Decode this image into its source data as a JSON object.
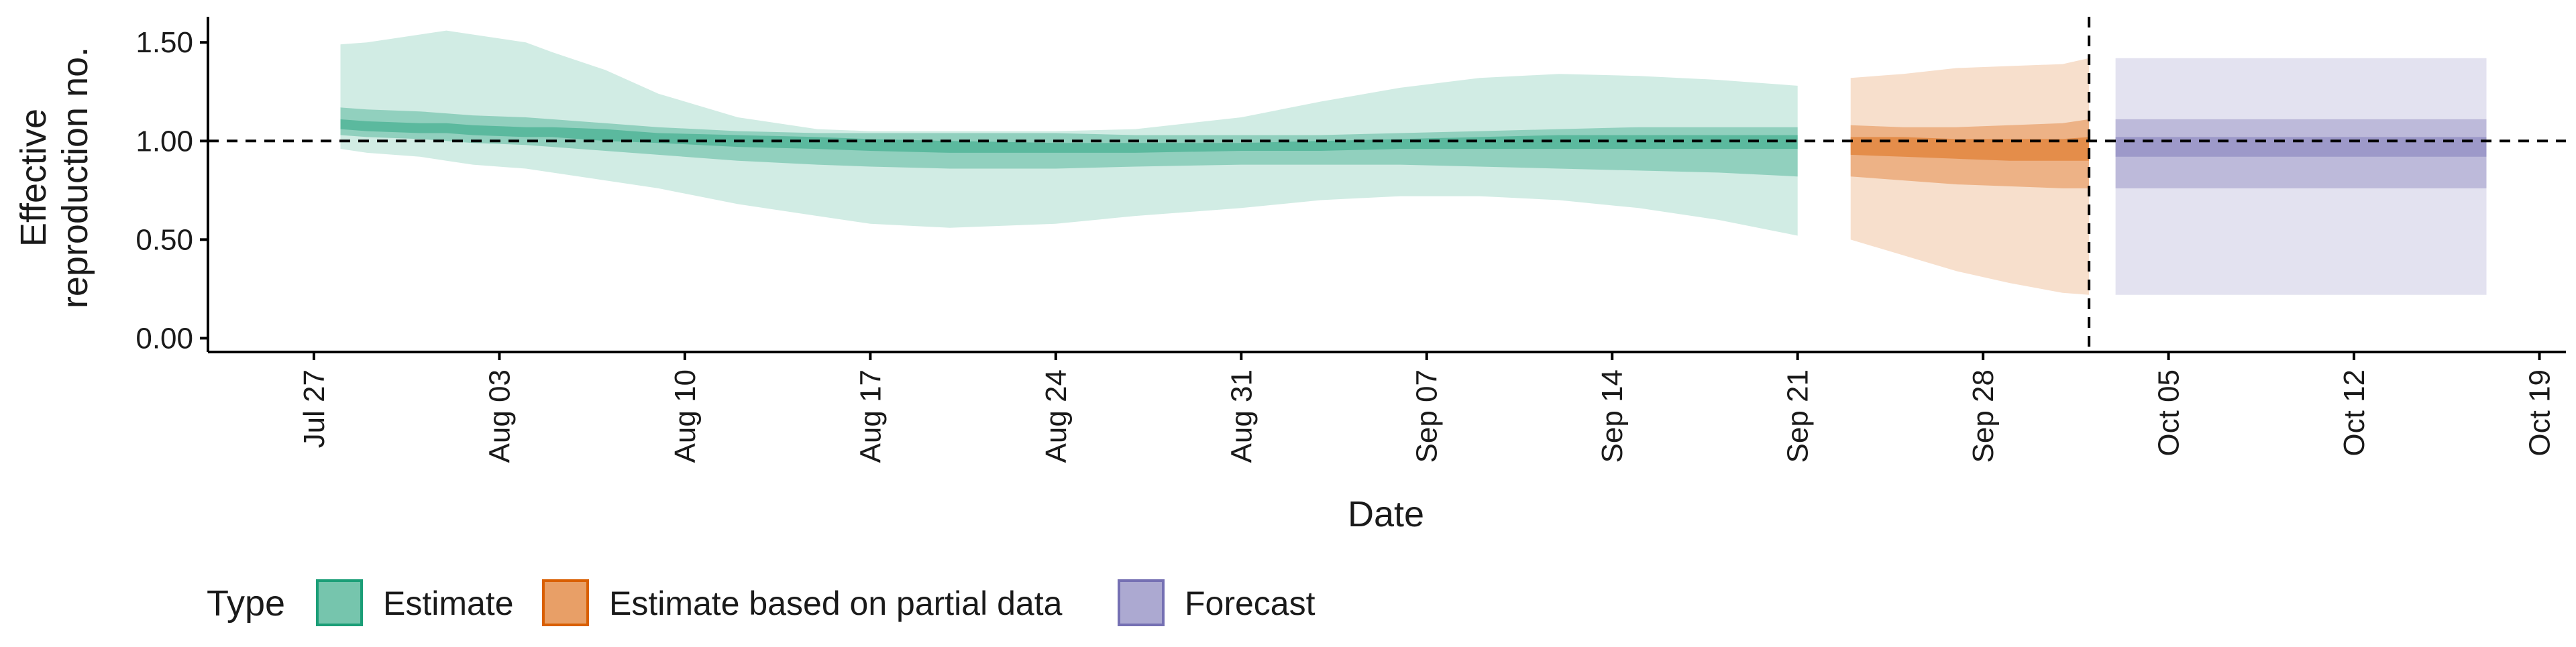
{
  "chart_data": {
    "type": "area",
    "title": "",
    "xlabel": "Date",
    "ylabel": "Effective reproduction no.",
    "ylabel_lines": [
      "Effective",
      "reproduction no."
    ],
    "ylim": [
      -0.07,
      1.63
    ],
    "xlim_dates": [
      "2020-07-23",
      "2020-10-20"
    ],
    "y_ticks": [
      0.0,
      0.5,
      1.0,
      1.5
    ],
    "y_tick_labels": [
      "0.00",
      "0.50",
      "1.00",
      "1.50"
    ],
    "x_ticks": [
      "2020-07-27",
      "2020-08-03",
      "2020-08-10",
      "2020-08-17",
      "2020-08-24",
      "2020-08-31",
      "2020-09-07",
      "2020-09-14",
      "2020-09-21",
      "2020-09-28",
      "2020-10-05",
      "2020-10-12",
      "2020-10-19"
    ],
    "x_tick_labels": [
      "Jul 27",
      "Aug 03",
      "Aug 10",
      "Aug 17",
      "Aug 24",
      "Aug 31",
      "Sep 07",
      "Sep 14",
      "Sep 21",
      "Sep 28",
      "Oct 05",
      "Oct 12",
      "Oct 19"
    ],
    "reference_line_y": 1.0,
    "forecast_date_line": "2020-10-02",
    "grid": false,
    "legend": {
      "title": "Type",
      "position": "bottom-left",
      "entries": [
        "Estimate",
        "Estimate based on partial data",
        "Forecast"
      ]
    },
    "colors": {
      "Estimate": "#1b9e77",
      "Estimate based on partial data": "#d95f02",
      "Forecast": "#7570b3"
    },
    "series": [
      {
        "name": "Estimate",
        "x": [
          "2020-07-28",
          "2020-07-29",
          "2020-07-31",
          "2020-08-01",
          "2020-08-02",
          "2020-08-04",
          "2020-08-05",
          "2020-08-07",
          "2020-08-09",
          "2020-08-12",
          "2020-08-15",
          "2020-08-17",
          "2020-08-20",
          "2020-08-24",
          "2020-08-27",
          "2020-08-31",
          "2020-09-03",
          "2020-09-06",
          "2020-09-09",
          "2020-09-12",
          "2020-09-15",
          "2020-09-18",
          "2020-09-21"
        ],
        "lower_90": [
          0.96,
          0.94,
          0.92,
          0.9,
          0.88,
          0.86,
          0.84,
          0.8,
          0.76,
          0.68,
          0.62,
          0.58,
          0.56,
          0.58,
          0.62,
          0.66,
          0.7,
          0.72,
          0.72,
          0.7,
          0.66,
          0.6,
          0.52
        ],
        "upper_90": [
          1.49,
          1.5,
          1.54,
          1.56,
          1.54,
          1.5,
          1.45,
          1.36,
          1.24,
          1.12,
          1.06,
          1.05,
          1.05,
          1.05,
          1.06,
          1.12,
          1.2,
          1.27,
          1.32,
          1.34,
          1.33,
          1.31,
          1.28
        ],
        "lower_50": [
          1.03,
          1.02,
          1.01,
          1.0,
          0.99,
          0.98,
          0.97,
          0.95,
          0.93,
          0.9,
          0.88,
          0.87,
          0.86,
          0.86,
          0.87,
          0.88,
          0.88,
          0.88,
          0.87,
          0.86,
          0.85,
          0.84,
          0.82
        ],
        "upper_50": [
          1.17,
          1.16,
          1.15,
          1.14,
          1.13,
          1.12,
          1.11,
          1.09,
          1.07,
          1.05,
          1.04,
          1.04,
          1.04,
          1.04,
          1.03,
          1.03,
          1.03,
          1.04,
          1.05,
          1.06,
          1.07,
          1.07,
          1.07
        ],
        "lower_20": [
          1.06,
          1.05,
          1.04,
          1.04,
          1.03,
          1.02,
          1.02,
          1.0,
          0.99,
          0.97,
          0.96,
          0.95,
          0.94,
          0.94,
          0.94,
          0.95,
          0.95,
          0.96,
          0.96,
          0.96,
          0.96,
          0.96,
          0.96
        ],
        "upper_20": [
          1.11,
          1.1,
          1.09,
          1.09,
          1.08,
          1.07,
          1.07,
          1.06,
          1.04,
          1.03,
          1.02,
          1.01,
          1.0,
          0.99,
          0.99,
          0.99,
          1.0,
          1.01,
          1.02,
          1.03,
          1.03,
          1.03,
          1.03
        ]
      },
      {
        "name": "Estimate based on partial data",
        "x": [
          "2020-09-23",
          "2020-09-25",
          "2020-09-27",
          "2020-09-29",
          "2020-10-01",
          "2020-10-02"
        ],
        "lower_90": [
          0.5,
          0.42,
          0.34,
          0.28,
          0.23,
          0.22
        ],
        "upper_90": [
          1.32,
          1.34,
          1.37,
          1.38,
          1.39,
          1.42
        ],
        "lower_50": [
          0.82,
          0.8,
          0.78,
          0.77,
          0.76,
          0.76
        ],
        "upper_50": [
          1.08,
          1.07,
          1.07,
          1.08,
          1.09,
          1.11
        ],
        "lower_20": [
          0.93,
          0.92,
          0.91,
          0.9,
          0.9,
          0.9
        ],
        "upper_20": [
          1.02,
          1.02,
          1.01,
          1.01,
          1.01,
          1.02
        ]
      },
      {
        "name": "Forecast",
        "x": [
          "2020-10-03",
          "2020-10-17"
        ],
        "lower_90": [
          0.22,
          0.22
        ],
        "upper_90": [
          1.42,
          1.42
        ],
        "lower_50": [
          0.76,
          0.76
        ],
        "upper_50": [
          1.11,
          1.11
        ],
        "lower_20": [
          0.92,
          0.92
        ],
        "upper_20": [
          1.02,
          1.02
        ]
      }
    ]
  }
}
